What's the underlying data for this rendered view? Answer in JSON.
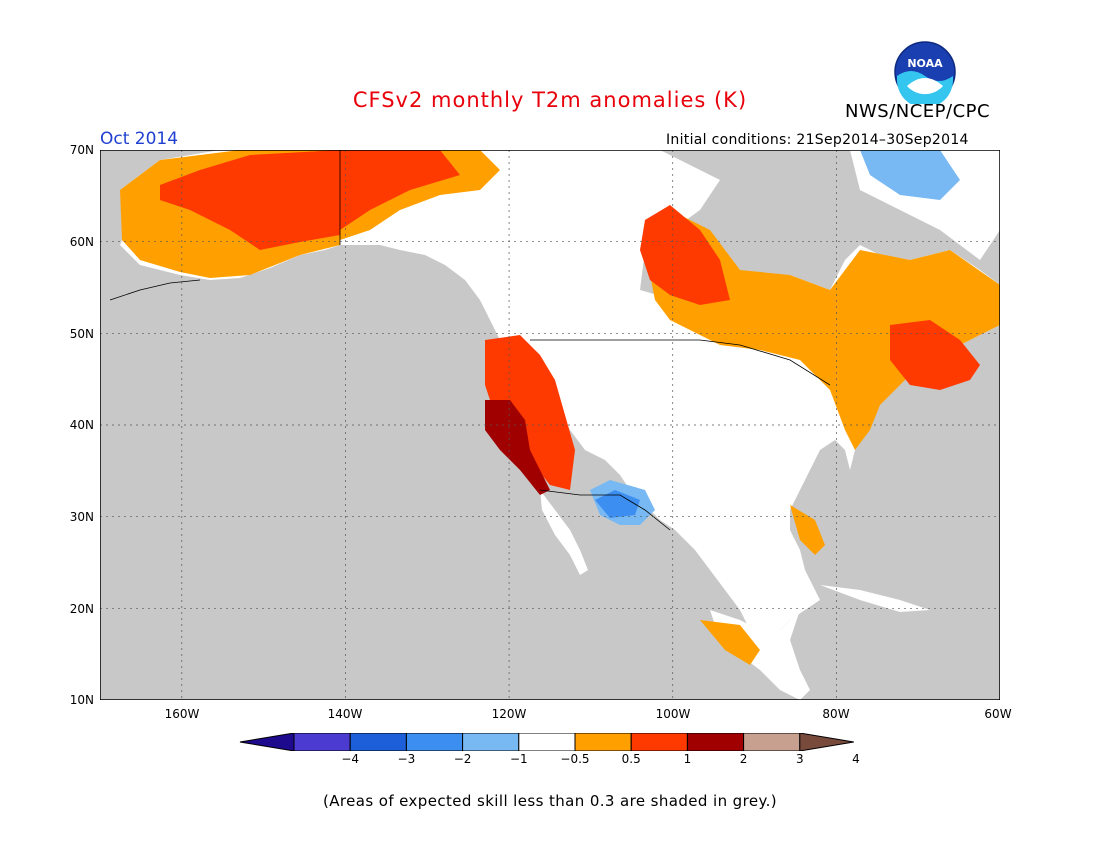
{
  "title": "CFSv2 monthly T2m anomalies (K)",
  "agency": "NWS/NCEP/CPC",
  "valid_month": "Oct 2014",
  "initial_conditions": "Initial conditions: 21Sep2014–30Sep2014",
  "footnote": "(Areas of expected skill less than 0.3 are shaded in grey.)",
  "logo_text": "NOAA",
  "map": {
    "lat_labels": [
      "70N",
      "60N",
      "50N",
      "40N",
      "30N",
      "20N",
      "10N"
    ],
    "lon_labels": [
      "160W",
      "140W",
      "120W",
      "100W",
      "80W",
      "60W"
    ],
    "lat_range": [
      10,
      70
    ],
    "lon_range": [
      -170,
      -60
    ],
    "ocean_color": "#c8c8c8",
    "land_color": "#ffffff"
  },
  "colorbar": {
    "labels": [
      "−4",
      "−3",
      "−2",
      "−1",
      "−0.5",
      "0.5",
      "1",
      "2",
      "3",
      "4"
    ],
    "colors": [
      "#1e0a8c",
      "#4b3bd0",
      "#1c5fd8",
      "#3c8ef0",
      "#78b9f4",
      "#ffffff",
      "#ffa000",
      "#ff3a00",
      "#a00000",
      "#c8a090",
      "#784a3c"
    ]
  }
}
